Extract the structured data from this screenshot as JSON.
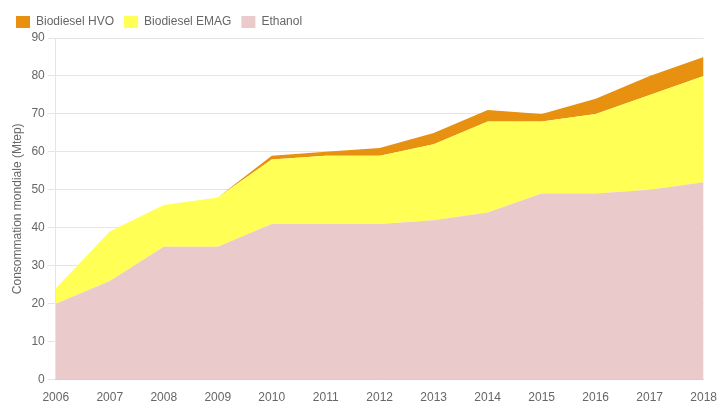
{
  "chart_data": {
    "type": "area",
    "stacked": true,
    "ylabel": "Consommation mondiale (Mtep)",
    "x": [
      2006,
      2007,
      2008,
      2009,
      2010,
      2011,
      2012,
      2013,
      2014,
      2015,
      2016,
      2017,
      2018
    ],
    "xlim": [
      2006,
      2018
    ],
    "xticks": [
      2006,
      2007,
      2008,
      2009,
      2010,
      2011,
      2012,
      2013,
      2014,
      2015,
      2016,
      2017,
      2018
    ],
    "ylim": [
      0,
      90
    ],
    "yticks": [
      0,
      10,
      20,
      30,
      40,
      50,
      60,
      70,
      80,
      90
    ],
    "grid": "y",
    "legend": "upper left",
    "series": [
      {
        "name": "Ethanol",
        "color": "#eacaca",
        "values": [
          20,
          26,
          35,
          35,
          41,
          41,
          41,
          42,
          44,
          49,
          49,
          50,
          52
        ]
      },
      {
        "name": "Biodiesel EMAG",
        "color": "#ffff55",
        "values": [
          4,
          13,
          11,
          13,
          17,
          18,
          18,
          20,
          24,
          19,
          21,
          25,
          28
        ]
      },
      {
        "name": "Biodiesel HVO",
        "color": "#e89010",
        "values": [
          0,
          0,
          0,
          0,
          1,
          1,
          2,
          3,
          3,
          2,
          4,
          5,
          5
        ]
      }
    ]
  }
}
